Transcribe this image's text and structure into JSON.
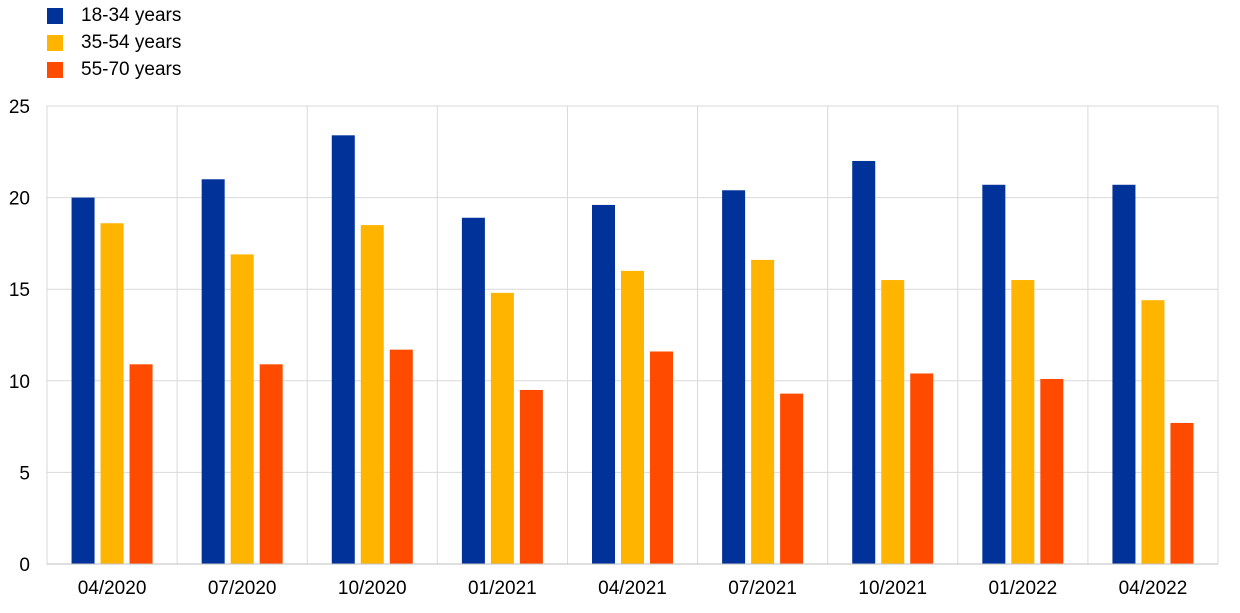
{
  "chart_data": {
    "type": "bar",
    "categories": [
      "04/2020",
      "07/2020",
      "10/2020",
      "01/2021",
      "04/2021",
      "07/2021",
      "10/2021",
      "01/2022",
      "04/2022"
    ],
    "series": [
      {
        "name": "18-34 years",
        "color": "#003299",
        "values": [
          20.0,
          21.0,
          23.4,
          18.9,
          19.6,
          20.4,
          22.0,
          20.7,
          20.7
        ]
      },
      {
        "name": "35-54 years",
        "color": "#FFB400",
        "values": [
          18.6,
          16.9,
          18.5,
          14.8,
          16.0,
          16.6,
          15.5,
          15.5,
          14.4
        ]
      },
      {
        "name": "55-70 years",
        "color": "#FF4B00",
        "values": [
          10.9,
          10.9,
          11.7,
          9.5,
          11.6,
          9.3,
          10.4,
          10.1,
          7.7
        ]
      }
    ],
    "y_ticks": [
      "0",
      "5",
      "10",
      "15",
      "20",
      "25"
    ],
    "ylim": [
      0,
      25
    ],
    "grid": true,
    "legend_position": "top-left"
  }
}
